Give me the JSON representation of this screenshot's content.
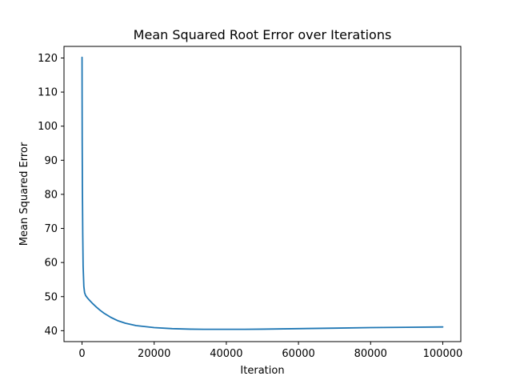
{
  "chart_data": {
    "type": "line",
    "title": "Mean Squared Root Error over Iterations",
    "xlabel": "Iteration",
    "ylabel": "Mean Squared Error",
    "xlim": [
      -5000,
      105000
    ],
    "ylim": [
      36.8,
      123.4
    ],
    "x_ticks": [
      0,
      20000,
      40000,
      60000,
      80000,
      100000
    ],
    "x_tick_labels": [
      "0",
      "20000",
      "40000",
      "60000",
      "80000",
      "100000"
    ],
    "y_ticks": [
      40,
      50,
      60,
      70,
      80,
      90,
      100,
      110,
      120
    ],
    "y_tick_labels": [
      "40",
      "50",
      "60",
      "70",
      "80",
      "90",
      "100",
      "110",
      "120"
    ],
    "grid": false,
    "legend": null,
    "series": [
      {
        "color": "#1f77b4",
        "x": [
          0,
          20,
          50,
          100,
          200,
          300,
          500,
          700,
          1000,
          1500,
          2000,
          3000,
          4000,
          5000,
          6000,
          8000,
          10000,
          12000,
          15000,
          20000,
          25000,
          30000,
          35000,
          40000,
          45000,
          50000,
          60000,
          70000,
          80000,
          90000,
          100000
        ],
        "y": [
          120.2,
          108.0,
          95.0,
          82.0,
          68.0,
          59.0,
          53.0,
          51.2,
          50.3,
          49.6,
          49.0,
          47.9,
          46.9,
          46.0,
          45.2,
          43.9,
          42.9,
          42.2,
          41.5,
          40.9,
          40.6,
          40.45,
          40.4,
          40.4,
          40.4,
          40.45,
          40.6,
          40.75,
          40.9,
          41.0,
          41.1
        ]
      }
    ]
  }
}
